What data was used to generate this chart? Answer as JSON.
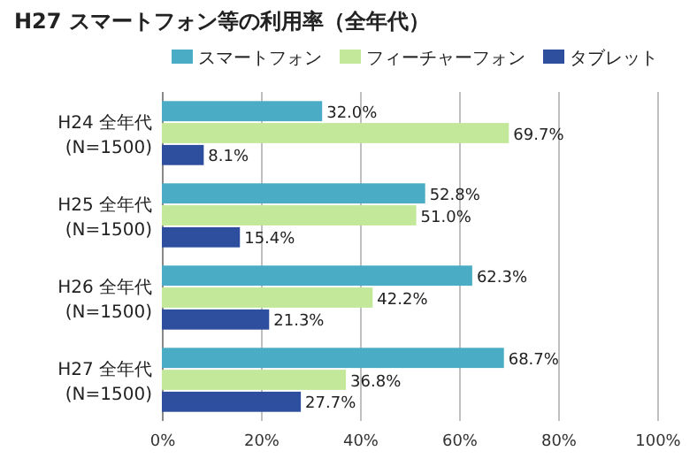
{
  "chart_data": {
    "type": "bar",
    "orientation": "horizontal",
    "title": "H27 スマートフォン等の利用率（全年代）",
    "categories": [
      "H24 全年代\n(N=1500)",
      "H25 全年代\n(N=1500)",
      "H26 全年代\n(N=1500)",
      "H27 全年代\n(N=1500)"
    ],
    "series": [
      {
        "name": "スマートフォン",
        "color": "#4bacc6",
        "values": [
          32.0,
          52.8,
          62.3,
          68.7
        ],
        "value_labels": [
          "32.0%",
          "52.8%",
          "62.3%",
          "68.7%"
        ]
      },
      {
        "name": "フィーチャーフォン",
        "color": "#c4e89a",
        "values": [
          69.7,
          51.0,
          42.2,
          36.8
        ],
        "value_labels": [
          "69.7%",
          "51.0%",
          "42.2%",
          "36.8%"
        ]
      },
      {
        "name": "タブレット",
        "color": "#2e4e9e",
        "values": [
          8.1,
          15.4,
          21.3,
          27.7
        ],
        "value_labels": [
          "8.1%",
          "15.4%",
          "21.3%",
          "27.7%"
        ]
      }
    ],
    "xlim": [
      0,
      100
    ],
    "xticks": [
      {
        "value": 0,
        "label": "0%"
      },
      {
        "value": 20,
        "label": "20%"
      },
      {
        "value": 40,
        "label": "40%"
      },
      {
        "value": 60,
        "label": "60%"
      },
      {
        "value": 80,
        "label": "80%"
      },
      {
        "value": 100,
        "label": "100%"
      }
    ],
    "grid": "x",
    "legend": "top right"
  }
}
